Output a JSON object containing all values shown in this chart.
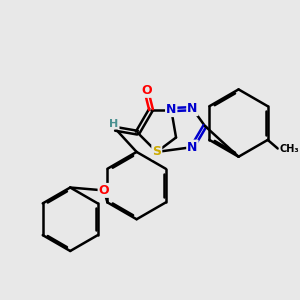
{
  "bg_color": "#e8e8e8",
  "atom_colors": {
    "O": "#ff0000",
    "N": "#0000cd",
    "S": "#ccaa00",
    "C": "#000000",
    "H": "#4a9090"
  },
  "bond_color": "#000000",
  "bond_width": 1.8,
  "figsize": [
    3.0,
    3.0
  ],
  "dpi": 100
}
